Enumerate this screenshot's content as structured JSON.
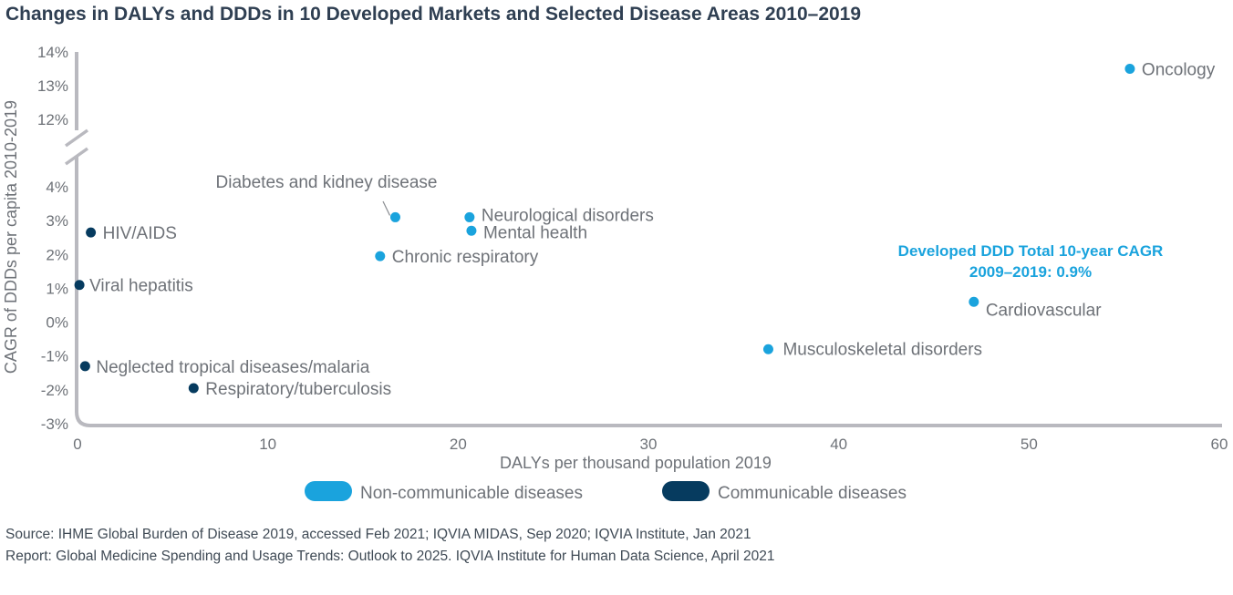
{
  "title": "Changes in DALYs and DDDs in 10 Developed Markets and Selected Disease Areas 2010–2019",
  "colors": {
    "noncommunicable": "#1aa3dd",
    "communicable": "#063b5f",
    "axis": "#b9b9bf",
    "text": "#6e7278",
    "annotation": "#1aa3dd"
  },
  "chart_data": {
    "type": "scatter",
    "title": "Changes in DALYs and DDDs in 10 Developed Markets and Selected Disease Areas 2010–2019",
    "xlabel": "DALYs per thousand population 2019",
    "ylabel": "CAGR of DDDs per capita 2010-2019",
    "xlim": [
      0,
      60
    ],
    "x_ticks": [
      "0",
      "10",
      "20",
      "30",
      "40",
      "50",
      "60"
    ],
    "y_axis_break": {
      "lower_range": [
        -3,
        4
      ],
      "upper_range": [
        12,
        14
      ]
    },
    "y_ticks_lower": [
      "-3%",
      "-2%",
      "-1%",
      "0%",
      "1%",
      "2%",
      "3%",
      "4%"
    ],
    "y_ticks_upper": [
      "12%",
      "13%",
      "14%"
    ],
    "legend": [
      {
        "name": "Non-communicable diseases",
        "key": "noncommunicable"
      },
      {
        "name": "Communicable diseases",
        "key": "communicable"
      }
    ],
    "points": [
      {
        "label": "Oncology",
        "x": 55.3,
        "y": 13.5,
        "category": "noncommunicable"
      },
      {
        "label": "Diabetes and kidney disease",
        "x": 16.7,
        "y": 3.1,
        "category": "noncommunicable"
      },
      {
        "label": "Neurological disorders",
        "x": 20.6,
        "y": 3.1,
        "category": "noncommunicable"
      },
      {
        "label": "Mental health",
        "x": 20.7,
        "y": 2.7,
        "category": "noncommunicable"
      },
      {
        "label": "Chronic respiratory",
        "x": 15.9,
        "y": 1.95,
        "category": "noncommunicable"
      },
      {
        "label": "Cardiovascular",
        "x": 47.1,
        "y": 0.6,
        "category": "noncommunicable"
      },
      {
        "label": "Musculoskeletal disorders",
        "x": 36.3,
        "y": -0.8,
        "category": "noncommunicable"
      },
      {
        "label": "HIV/AIDS",
        "x": 0.7,
        "y": 2.65,
        "category": "communicable"
      },
      {
        "label": "Viral hepatitis",
        "x": 0.1,
        "y": 1.1,
        "category": "communicable"
      },
      {
        "label": "Neglected tropical diseases/malaria",
        "x": 0.4,
        "y": -1.3,
        "category": "communicable"
      },
      {
        "label": "Respiratory/tuberculosis",
        "x": 6.1,
        "y": -1.95,
        "category": "communicable"
      }
    ],
    "annotation": {
      "line1": "Developed DDD Total 10-year CAGR",
      "line2": "2009–2019: 0.9%"
    }
  },
  "source": {
    "line1": "Source: IHME Global Burden of Disease 2019, accessed Feb 2021; IQVIA MIDAS, Sep 2020; IQVIA Institute, Jan 2021",
    "line2": "Report: Global Medicine Spending and Usage Trends: Outlook to 2025. IQVIA Institute for Human Data Science, April 2021"
  }
}
